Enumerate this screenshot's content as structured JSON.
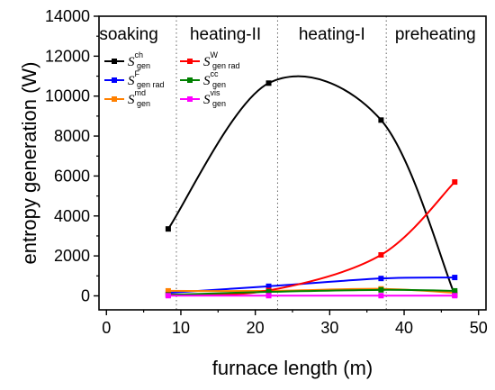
{
  "chart_data": {
    "type": "line",
    "title": "",
    "xlabel": "furnace length (m)",
    "ylabel": "entropy generation (W)",
    "xlim": [
      -1,
      51
    ],
    "ylim": [
      -700,
      14000
    ],
    "xticks": [
      "0",
      "10",
      "20",
      "30",
      "40",
      "50"
    ],
    "xtick_values": [
      0,
      10,
      20,
      30,
      40,
      50
    ],
    "yticks": [
      "0",
      "2000",
      "4000",
      "6000",
      "8000",
      "10000",
      "12000",
      "14000"
    ],
    "ytick_values": [
      0,
      2000,
      4000,
      6000,
      8000,
      10000,
      12000,
      14000
    ],
    "grid": false,
    "zone_boundaries": [
      9.4,
      23.0,
      37.6
    ],
    "zones": [
      {
        "label": "soaking",
        "center": 3.0
      },
      {
        "label": "heating-II",
        "center": 16.0
      },
      {
        "label": "heating-I",
        "center": 30.3
      },
      {
        "label": "preheating",
        "center": 44.2
      }
    ],
    "legend_position": "top-left",
    "series": [
      {
        "name": "S_gen^ch",
        "base": "S",
        "sub": "gen",
        "sup": "ch",
        "color": "#000000",
        "x": [
          8.3,
          21.8,
          36.9,
          46.8
        ],
        "values": [
          3350,
          10650,
          8800,
          50
        ]
      },
      {
        "name": "S_gen rad^F",
        "base": "S",
        "sub": "gen rad",
        "sup": "F",
        "color": "#0000ff",
        "x": [
          8.3,
          21.8,
          36.9,
          46.8
        ],
        "values": [
          150,
          480,
          870,
          920
        ]
      },
      {
        "name": "S_gen^md",
        "base": "S",
        "sub": "gen",
        "sup": "md",
        "color": "#ff8000",
        "x": [
          8.3,
          21.8,
          36.9,
          46.8
        ],
        "values": [
          250,
          250,
          350,
          150
        ]
      },
      {
        "name": "S_gen rad^W",
        "base": "S",
        "sub": "gen rad",
        "sup": "W",
        "color": "#ff0000",
        "x": [
          8.3,
          21.8,
          36.9,
          46.8
        ],
        "values": [
          60,
          270,
          2050,
          5700
        ]
      },
      {
        "name": "S_gen^cc",
        "base": "S",
        "sub": "gen",
        "sup": "cc",
        "color": "#008000",
        "x": [
          8.3,
          21.8,
          36.9,
          46.8
        ],
        "values": [
          50,
          200,
          300,
          250
        ]
      },
      {
        "name": "S_gen^vis",
        "base": "S",
        "sub": "gen",
        "sup": "vis",
        "color": "#ff00ff",
        "x": [
          8.3,
          21.8,
          36.9,
          46.8
        ],
        "values": [
          10,
          10,
          10,
          10
        ]
      }
    ]
  }
}
